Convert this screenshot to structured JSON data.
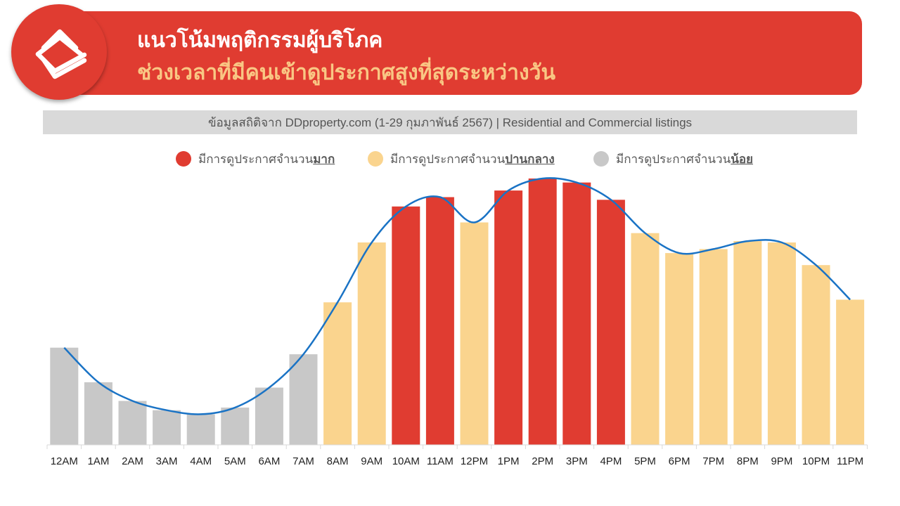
{
  "header": {
    "title": "แนวโน้มพฤติกรรมผู้บริโภค",
    "subtitle": "ช่วงเวลาที่มีคนเข้าดูประกาศสูงที่สุดระหว่างวัน",
    "logo_icon": "ddproperty-logo-icon"
  },
  "source": "ข้อมูลสถิติจาก DDproperty.com (1-29 กุมภาพันธ์ 2567) | Residential and Commercial listings",
  "legend": [
    {
      "prefix": "มีการดูประกาศจำนวน",
      "emphasis": "มาก",
      "color": "#e03c31"
    },
    {
      "prefix": "มีการดูประกาศจำนวน",
      "emphasis": "ปานกลาง",
      "color": "#fad48e"
    },
    {
      "prefix": "มีการดูประกาศจำนวน",
      "emphasis": "น้อย",
      "color": "#c8c8c8"
    }
  ],
  "colors": {
    "high": "#e03c31",
    "medium": "#fad48e",
    "low": "#c8c8c8",
    "trend_line": "#1a73c5",
    "axis": "#d9d9d9"
  },
  "chart_data": {
    "type": "bar",
    "categories": [
      "12AM",
      "1AM",
      "2AM",
      "3AM",
      "4AM",
      "5AM",
      "6AM",
      "7AM",
      "8AM",
      "9AM",
      "10AM",
      "11AM",
      "12PM",
      "1PM",
      "2PM",
      "3PM",
      "4PM",
      "5PM",
      "6PM",
      "7PM",
      "8PM",
      "9PM",
      "10PM",
      "11PM"
    ],
    "values": [
      36.5,
      23.5,
      16.5,
      13.0,
      11.5,
      14.0,
      21.5,
      34.0,
      53.5,
      76.0,
      89.5,
      93.0,
      83.5,
      95.5,
      100.0,
      98.5,
      92.0,
      79.5,
      72.0,
      73.5,
      76.5,
      76.0,
      67.5,
      54.5
    ],
    "levels": [
      "low",
      "low",
      "low",
      "low",
      "low",
      "low",
      "low",
      "low",
      "medium",
      "medium",
      "high",
      "high",
      "medium",
      "high",
      "high",
      "high",
      "high",
      "medium",
      "medium",
      "medium",
      "medium",
      "medium",
      "medium",
      "medium"
    ],
    "trend_values": [
      36.5,
      23.5,
      16.5,
      13.0,
      11.5,
      14.0,
      21.5,
      34.0,
      53.5,
      76.0,
      89.5,
      93.0,
      83.5,
      95.5,
      100.0,
      98.5,
      92.0,
      79.5,
      72.0,
      73.5,
      76.5,
      76.0,
      67.5,
      54.5
    ],
    "ylim": [
      0,
      100
    ],
    "grid": false,
    "legend_position": "top-center"
  }
}
